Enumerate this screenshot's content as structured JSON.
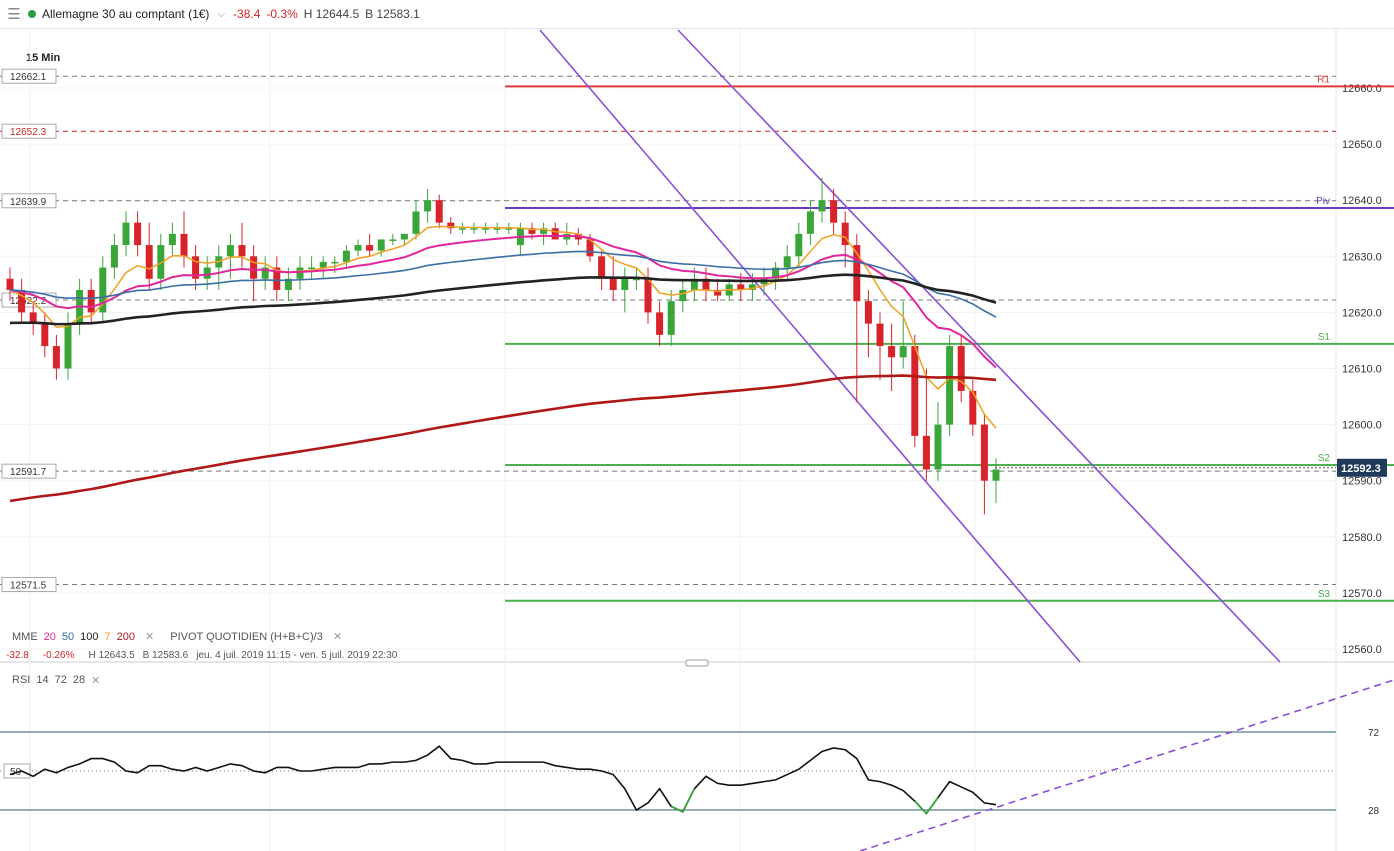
{
  "header": {
    "menu_icon": "hamburger-menu-icon",
    "title": "Allemagne 30 au comptant (1€)",
    "change": "-38.4",
    "change_pct": "-0.3%",
    "high": "H 12644.5",
    "bid": "B 12583.1"
  },
  "timeframe": "15 Min",
  "legend": {
    "mme_label": "MME",
    "mme_periods": [
      "20",
      "50",
      "100",
      "7",
      "200"
    ],
    "mme_colors": [
      "#e0279b",
      "#3a6ea5",
      "#222222",
      "#f0a020",
      "#b01818"
    ],
    "pivot_label": "PIVOT QUOTIDIEN (H+B+C)/3"
  },
  "info_line": {
    "change": "-32.8",
    "change_pct": "-0.26%",
    "high": "H 12643.5",
    "bid": "B 12583.6",
    "range": "jeu. 4 juil. 2019 11:15 - ven. 5 juil. 2019 22:30"
  },
  "rsi_legend": {
    "label": "RSI",
    "params": [
      "14",
      "72",
      "28"
    ]
  },
  "chart_data": {
    "type": "candlestick",
    "y_axis_ticks": [
      "12660.0",
      "12650.0",
      "12640.0",
      "12630.0",
      "12620.0",
      "12610.0",
      "12600.0",
      "12590.0",
      "12580.0",
      "12570.0",
      "12560.0"
    ],
    "current_price": "12592.3",
    "left_levels": [
      "12662.1",
      "12652.3",
      "12639.9",
      "12622.2",
      "12591.7",
      "12571.5"
    ],
    "pivots": {
      "R1": 12660.3,
      "Piv": 12638.6,
      "S1": 12614.4,
      "S2": 12592.8,
      "S3": 12568.6
    },
    "pivot_labels": [
      "R1",
      "Piv",
      "S1",
      "S2",
      "S3"
    ],
    "candles": [
      [
        12626,
        12628,
        12622,
        12624
      ],
      [
        12624,
        12626,
        12618,
        12620
      ],
      [
        12620,
        12622,
        12616,
        12618
      ],
      [
        12618,
        12620,
        12612,
        12614
      ],
      [
        12614,
        12616,
        12608,
        12610
      ],
      [
        12610,
        12620,
        12608,
        12618
      ],
      [
        12618,
        12626,
        12616,
        12624
      ],
      [
        12624,
        12626,
        12618,
        12620
      ],
      [
        12620,
        12630,
        12618,
        12628
      ],
      [
        12628,
        12634,
        12626,
        12632
      ],
      [
        12632,
        12638,
        12630,
        12636
      ],
      [
        12636,
        12638,
        12630,
        12632
      ],
      [
        12632,
        12636,
        12624,
        12626
      ],
      [
        12626,
        12634,
        12624,
        12632
      ],
      [
        12632,
        12636,
        12630,
        12634
      ],
      [
        12634,
        12638,
        12628,
        12630
      ],
      [
        12630,
        12632,
        12624,
        12626
      ],
      [
        12626,
        12630,
        12624,
        12628
      ],
      [
        12628,
        12632,
        12624,
        12630
      ],
      [
        12630,
        12634,
        12626,
        12632
      ],
      [
        12632,
        12636,
        12628,
        12630
      ],
      [
        12630,
        12632,
        12622,
        12626
      ],
      [
        12626,
        12630,
        12624,
        12628
      ],
      [
        12628,
        12630,
        12622,
        12624
      ],
      [
        12624,
        12628,
        12622,
        12626
      ],
      [
        12626,
        12630,
        12624,
        12628
      ],
      [
        12628,
        12630,
        12626,
        12628
      ],
      [
        12628,
        12630,
        12626,
        12629
      ],
      [
        12629,
        12630,
        12627,
        12629
      ],
      [
        12629,
        12632,
        12628,
        12631
      ],
      [
        12631,
        12633,
        12630,
        12632
      ],
      [
        12632,
        12634,
        12630,
        12631
      ],
      [
        12631,
        12633,
        12630,
        12633
      ],
      [
        12633,
        12634,
        12632,
        12633
      ],
      [
        12633,
        12634,
        12632,
        12634
      ],
      [
        12634,
        12640,
        12633,
        12638
      ],
      [
        12638,
        12642,
        12636,
        12640
      ],
      [
        12640,
        12641,
        12635,
        12636
      ],
      [
        12636,
        12637,
        12634,
        12635
      ],
      [
        12635,
        12636,
        12634,
        12635
      ],
      [
        12635,
        12636,
        12634,
        12635
      ],
      [
        12635,
        12636,
        12634,
        12635
      ],
      [
        12635,
        12636,
        12634,
        12635
      ],
      [
        12635,
        12636,
        12634,
        12635
      ],
      [
        12632,
        12636,
        12630,
        12635
      ],
      [
        12635,
        12636,
        12633,
        12634
      ],
      [
        12634,
        12636,
        12632,
        12635
      ],
      [
        12635,
        12636,
        12633,
        12633
      ],
      [
        12633,
        12636,
        12632,
        12634
      ],
      [
        12634,
        12635,
        12632,
        12633
      ],
      [
        12633,
        12634,
        12629,
        12630
      ],
      [
        12630,
        12631,
        12624,
        12626
      ],
      [
        12626,
        12630,
        12622,
        12624
      ],
      [
        12624,
        12628,
        12620,
        12626
      ],
      [
        12626,
        12628,
        12624,
        12626
      ],
      [
        12626,
        12628,
        12618,
        12620
      ],
      [
        12620,
        12622,
        12614,
        12616
      ],
      [
        12616,
        12624,
        12614,
        12622
      ],
      [
        12622,
        12626,
        12620,
        12624
      ],
      [
        12624,
        12628,
        12622,
        12626
      ],
      [
        12626,
        12628,
        12622,
        12624
      ],
      [
        12624,
        12626,
        12622,
        12623
      ],
      [
        12623,
        12626,
        12622,
        12625
      ],
      [
        12625,
        12627,
        12622,
        12624
      ],
      [
        12624,
        12627,
        12622,
        12625
      ],
      [
        12625,
        12628,
        12623,
        12626
      ],
      [
        12626,
        12629,
        12624,
        12628
      ],
      [
        12628,
        12632,
        12626,
        12630
      ],
      [
        12630,
        12636,
        12628,
        12634
      ],
      [
        12634,
        12640,
        12632,
        12638
      ],
      [
        12638,
        12644,
        12636,
        12640
      ],
      [
        12640,
        12642,
        12634,
        12636
      ],
      [
        12636,
        12638,
        12628,
        12632
      ],
      [
        12632,
        12634,
        12604,
        12622
      ],
      [
        12622,
        12624,
        12612,
        12618
      ],
      [
        12618,
        12620,
        12608,
        12614
      ],
      [
        12614,
        12618,
        12606,
        12612
      ],
      [
        12612,
        12622,
        12610,
        12614
      ],
      [
        12614,
        12616,
        12596,
        12598
      ],
      [
        12598,
        12610,
        12590,
        12592
      ],
      [
        12592,
        12604,
        12590,
        12600
      ],
      [
        12600,
        12616,
        12598,
        12614
      ],
      [
        12614,
        12616,
        12604,
        12606
      ],
      [
        12606,
        12608,
        12598,
        12600
      ],
      [
        12600,
        12602,
        12584,
        12590
      ],
      [
        12590,
        12594,
        12586,
        12592
      ]
    ],
    "rsi_levels": {
      "upper": 72,
      "lower": 28,
      "mid": 50
    },
    "rsi": [
      48,
      50,
      47,
      51,
      49,
      52,
      54,
      57,
      57,
      55,
      50,
      49,
      53,
      53,
      51,
      50,
      52,
      50,
      52,
      54,
      53,
      50,
      49,
      52,
      52,
      50,
      50,
      51,
      52,
      52,
      52,
      54,
      54,
      55,
      55,
      56,
      59,
      64,
      57,
      56,
      54,
      54,
      55,
      55,
      55,
      55,
      55,
      53,
      52,
      51,
      51,
      50,
      48,
      40,
      28,
      32,
      40,
      30,
      27,
      40,
      47,
      43,
      42,
      42,
      43,
      44,
      45,
      48,
      51,
      56,
      61,
      63,
      62,
      57,
      45,
      44,
      42,
      39,
      33,
      26,
      35,
      44,
      41,
      38,
      32,
      31
    ]
  }
}
